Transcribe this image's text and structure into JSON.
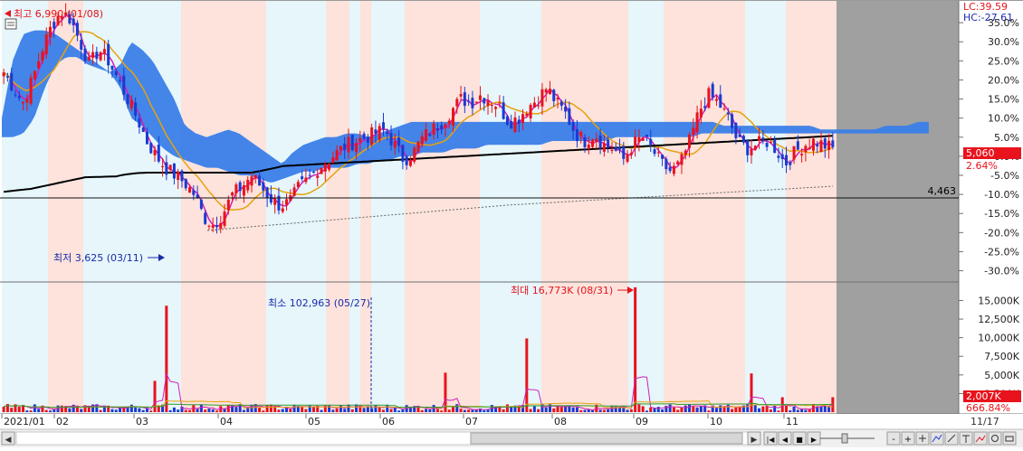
{
  "chart_data": [
    {
      "type": "candlestick",
      "panel": "price",
      "x_range": [
        "2021-01",
        "2021-11-17"
      ],
      "ylim_percent": [
        -32,
        40
      ],
      "ytick_labels": [
        "35.0%",
        "30.0%",
        "25.0%",
        "20.0%",
        "15.0%",
        "10.0%",
        "5.0%",
        "0.0%",
        "-5.0%",
        "-10.0%",
        "-15.0%",
        "-20.0%",
        "-25.0%",
        "-30.0%"
      ],
      "ytick_values": [
        35,
        30,
        25,
        20,
        15,
        10,
        5,
        0,
        -5,
        -10,
        -15,
        -20,
        -25,
        -30
      ],
      "indicators": [
        "moving-average-magenta",
        "moving-average-orange",
        "moving-average-black",
        "ichimoku-cloud"
      ],
      "annotations": {
        "high": {
          "label": "최고 6,990 (01/08)",
          "date": "01/08",
          "price": 6990
        },
        "low": {
          "label": "최저 3,625 (03/11)",
          "date": "03/11",
          "price": 3625
        }
      },
      "hline": {
        "label": "4,463",
        "value_pct": -9.6
      },
      "right_labels": {
        "lc": "LC:39.59",
        "hc": "HC:-27.61",
        "last_price": "5,060",
        "last_pct": "2.64%"
      },
      "close_pct": [
        22,
        18,
        14,
        20,
        28,
        34,
        38,
        36,
        30,
        24,
        28,
        25,
        20,
        15,
        10,
        4,
        0,
        -3,
        -5,
        -7,
        -10,
        -16,
        -18,
        -15,
        -10,
        -8,
        -5,
        -8,
        -11,
        -13,
        -12,
        -8,
        -6,
        -3,
        -1,
        1,
        3,
        4,
        5,
        6,
        7,
        3,
        -1,
        1,
        5,
        7,
        9,
        12,
        15,
        14,
        16,
        15,
        13,
        9,
        10,
        13,
        15,
        18,
        14,
        11,
        6,
        4,
        6,
        3,
        2,
        -1,
        3,
        5,
        2,
        -2,
        -4,
        -2,
        4,
        12,
        16,
        14,
        10,
        4,
        2,
        3,
        4,
        2,
        -2,
        1,
        3,
        4,
        3,
        2
      ],
      "cloud_top_pct": [
        10,
        25,
        32,
        33,
        33,
        32,
        30,
        28,
        26,
        24,
        22,
        24,
        30,
        28,
        25,
        20,
        15,
        8,
        6,
        5,
        6,
        7,
        6,
        4,
        2,
        0,
        -2,
        1,
        3,
        4,
        5,
        5,
        6,
        6,
        5,
        6,
        7,
        8,
        9,
        9,
        9,
        9,
        9,
        9,
        9,
        9,
        9,
        9,
        9,
        9,
        9,
        9,
        9,
        9,
        9,
        9,
        9,
        9,
        9,
        9,
        9,
        9,
        9,
        9,
        9,
        9,
        9,
        8,
        8,
        8,
        8,
        8,
        8,
        8,
        8,
        8,
        7,
        7,
        7,
        7,
        7,
        7,
        8,
        8,
        8,
        9,
        9
      ],
      "cloud_bottom_pct": [
        5,
        5,
        6,
        10,
        18,
        24,
        26,
        26,
        24,
        23,
        22,
        18,
        10,
        8,
        5,
        2,
        0,
        -1,
        -2,
        -3,
        -3,
        -4,
        -5,
        -5,
        -6,
        -7,
        -6,
        -5,
        -4,
        -4,
        -3,
        -3,
        -3,
        -2,
        -2,
        -1,
        -1,
        0,
        0,
        1,
        1,
        1,
        2,
        2,
        2,
        3,
        3,
        3,
        3,
        3,
        3,
        4,
        4,
        4,
        4,
        4,
        4,
        5,
        5,
        5,
        5,
        5,
        5,
        5,
        5,
        6,
        6,
        6,
        6,
        6,
        6,
        6,
        6,
        6,
        6,
        6,
        6,
        6,
        6,
        6,
        6,
        6,
        6,
        6,
        6,
        6,
        6
      ]
    },
    {
      "type": "bar",
      "panel": "volume",
      "ylim": [
        0,
        17000000
      ],
      "ytick_labels": [
        "15,000K",
        "12,500K",
        "10,000K",
        "7,500K",
        "5,000K",
        "2,500K"
      ],
      "ytick_values": [
        15000000,
        12500000,
        10000000,
        7500000,
        5000000,
        2500000
      ],
      "annotations": {
        "max": {
          "label": "최대 16,773K (08/31)",
          "date": "08/31",
          "value": 16773000
        },
        "min": {
          "label": "최소 102,963 (05/27)",
          "date": "05/27",
          "value": 102963
        }
      },
      "right_labels": {
        "last_volume": "2,007K",
        "last_pct": "666.84%"
      },
      "spikes": [
        {
          "date": "03/08",
          "value": 4200000
        },
        {
          "date": "03/12",
          "value": 14300000
        },
        {
          "date": "06/24",
          "value": 5300000
        },
        {
          "date": "07/22",
          "value": 9900000
        },
        {
          "date": "08/31",
          "value": 16773000
        },
        {
          "date": "10/18",
          "value": 5200000
        },
        {
          "date": "11/17",
          "value": 2007000
        }
      ]
    }
  ],
  "x_axis": {
    "month_labels": [
      "2021/01",
      "02",
      "03",
      "04",
      "05",
      "06",
      "07",
      "08",
      "09",
      "10",
      "11"
    ],
    "date_readout": "11/17"
  },
  "overlay_labels": {
    "high": "최고 6,990 (01/08)",
    "low": "최저 3,625 (03/11)",
    "max": "최대 16,773K (08/31)",
    "min": "최소 102,963 (05/27)",
    "hline": "4,463"
  },
  "right_panel": {
    "lc": "LC:39.59",
    "hc": "HC:-27.61",
    "price_tag": "5,060",
    "price_pct": "2.64%",
    "vol_tag": "2,007K",
    "vol_pct": "666.84%",
    "date_readout": "11/17"
  },
  "colors": {
    "up": "#e8131c",
    "down": "#1b3ad0",
    "cloud": "#3a7ee8",
    "ma_magenta": "#d21fb6",
    "ma_orange": "#e6a20e",
    "ma_black": "#000000",
    "band_pink": "#fde3dc",
    "band_blue": "#e6f6fb",
    "future_gray": "#a0a0a0"
  },
  "toolbar": {
    "scroll_left": "◀",
    "scroll_right": "▶",
    "nav_first": "|◀",
    "nav_prev": "◀",
    "nav_stop": "■",
    "nav_play": "▶",
    "nav_last": "▶|",
    "zoom_out": "-",
    "zoom_in": "+"
  }
}
